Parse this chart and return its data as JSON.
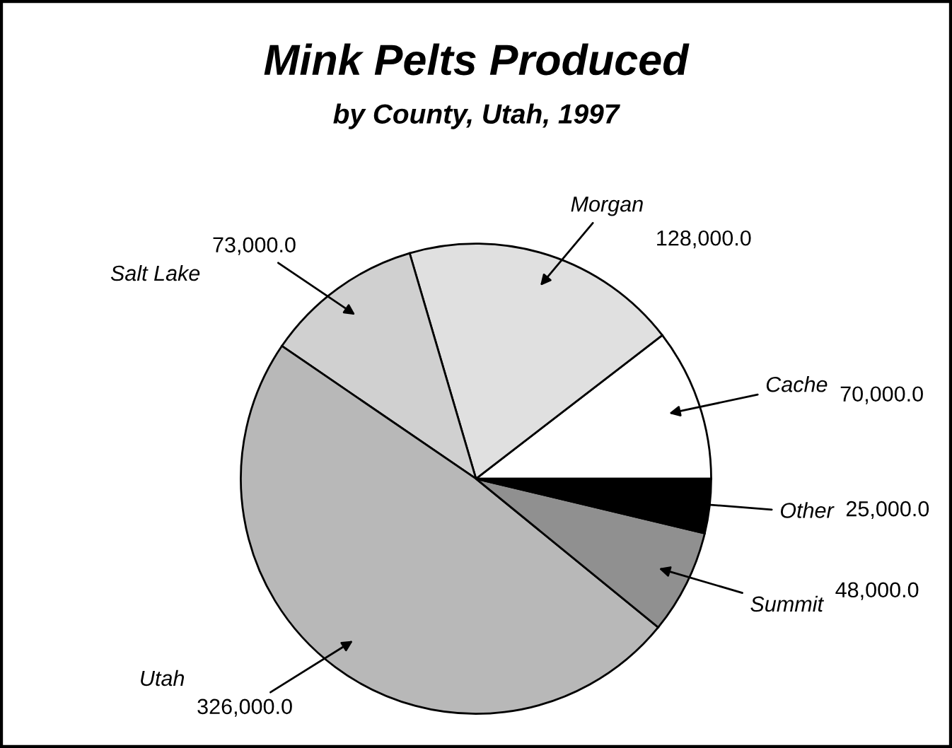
{
  "chart_data": {
    "type": "pie",
    "title": "Mink Pelts Produced",
    "subtitle": "by County, Utah, 1997",
    "categories": [
      "Cache",
      "Morgan",
      "Salt Lake",
      "Utah",
      "Summit",
      "Other"
    ],
    "values": [
      70000,
      128000,
      73000,
      326000,
      48000,
      25000
    ],
    "value_labels": [
      "70,000.0",
      "128,000.0",
      "73,000.0",
      "326,000.0",
      "48,000.0",
      "25,000.0"
    ],
    "colors": [
      "#ffffff",
      "#e0e0e0",
      "#d0d0d0",
      "#b8b8b8",
      "#909090",
      "#000000"
    ]
  }
}
